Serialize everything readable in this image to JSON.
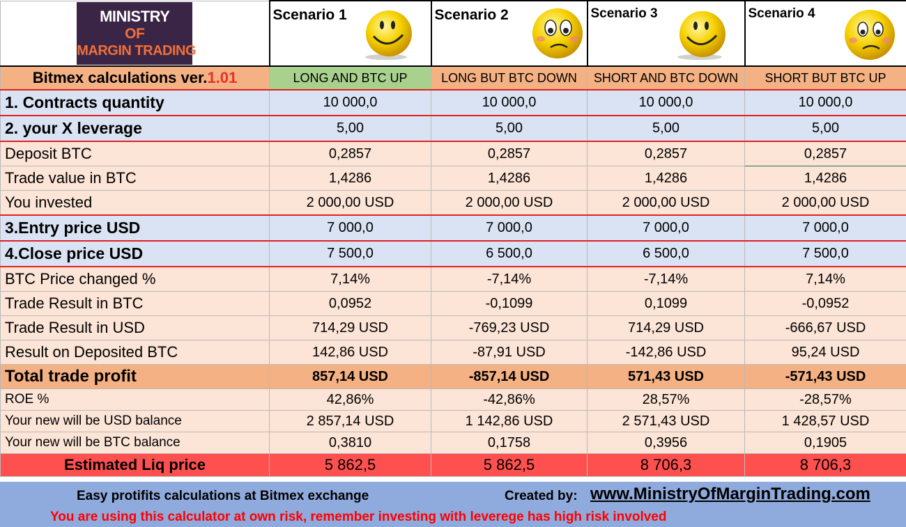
{
  "logo": {
    "line1": "MINISTRY",
    "line2": "OF",
    "line3": "MARGIN TRADING"
  },
  "scenarios": [
    {
      "title": "Scenario 1",
      "face": "happy-face-icon",
      "subtitle": "LONG AND BTC UP"
    },
    {
      "title": "Scenario 2",
      "face": "worried-face-icon",
      "subtitle": "LONG BUT BTC DOWN"
    },
    {
      "title": "Scenario 3",
      "face": "happy-face-icon",
      "subtitle": "SHORT AND BTC DOWN"
    },
    {
      "title": "Scenario 4",
      "face": "worried-face-icon",
      "subtitle": "SHORT BUT BTC UP"
    }
  ],
  "calc_title": {
    "text": "Bitmex calculations ver.",
    "version": "1.01"
  },
  "rows": [
    {
      "label": "1. Contracts quantity",
      "values": [
        "10 000,0",
        "10 000,0",
        "10 000,0",
        "10 000,0"
      ]
    },
    {
      "label": "2. your X leverage",
      "values": [
        "5,00",
        "5,00",
        "5,00",
        "5,00"
      ]
    },
    {
      "label": "Deposit BTC",
      "values": [
        "0,2857",
        "0,2857",
        "0,2857",
        "0,2857"
      ]
    },
    {
      "label": "Trade value in BTC",
      "values": [
        "1,4286",
        "1,4286",
        "1,4286",
        "1,4286"
      ]
    },
    {
      "label": "You invested",
      "values": [
        "2 000,00 USD",
        "2 000,00 USD",
        "2 000,00 USD",
        "2 000,00 USD"
      ]
    },
    {
      "label": "3.Entry price USD",
      "values": [
        "7 000,0",
        "7 000,0",
        "7 000,0",
        "7 000,0"
      ]
    },
    {
      "label": "4.Close price USD",
      "values": [
        "7 500,0",
        "6 500,0",
        "6 500,0",
        "7 500,0"
      ]
    },
    {
      "label": "BTC Price changed %",
      "values": [
        "7,14%",
        "-7,14%",
        "-7,14%",
        "7,14%"
      ]
    },
    {
      "label": "Trade Result in BTC",
      "values": [
        "0,0952",
        "-0,1099",
        "0,1099",
        "-0,0952"
      ]
    },
    {
      "label": "Trade Result in USD",
      "values": [
        "714,29 USD",
        "-769,23 USD",
        "714,29 USD",
        "-666,67 USD"
      ]
    },
    {
      "label": "Result on Deposited BTC",
      "values": [
        "142,86 USD",
        "-87,91 USD",
        "-142,86 USD",
        "95,24 USD"
      ]
    },
    {
      "label": "Total trade profit",
      "values": [
        "857,14 USD",
        "-857,14 USD",
        "571,43 USD",
        "-571,43 USD"
      ]
    },
    {
      "label": "ROE %",
      "values": [
        "42,86%",
        "-42,86%",
        "28,57%",
        "-28,57%"
      ]
    },
    {
      "label": "Your new will be USD balance",
      "values": [
        "2 857,14 USD",
        "1 142,86 USD",
        "2 571,43 USD",
        "1 428,57 USD"
      ]
    },
    {
      "label": "Your new will be BTC balance",
      "values": [
        "0,3810",
        "0,1758",
        "0,3956",
        "0,1905"
      ]
    },
    {
      "label": "Estimated Liq price",
      "values": [
        "5 862,5",
        "5 862,5",
        "8 706,3",
        "8 706,3"
      ]
    }
  ],
  "footer": {
    "left": "Easy protifits calculations at  Bitmex exchange",
    "created_by": "Created by:",
    "url": "www.MinistryOfMarginTrading.com",
    "warning": "You are using this calculator at  own risk, remember investing with leverege has high risk involved"
  },
  "colors": {
    "header_orange": "#f4b183",
    "scenario1_green": "#a9d18e",
    "input_blue": "#dae3f3",
    "calc_peach": "#fce4d6",
    "liq_red": "#ff5050",
    "footer_blue": "#8faadc",
    "warning_red": "#ff0000",
    "input_border_red": "#e02020",
    "logo_bg": "#3a2546",
    "logo_orange": "#f0703a"
  }
}
